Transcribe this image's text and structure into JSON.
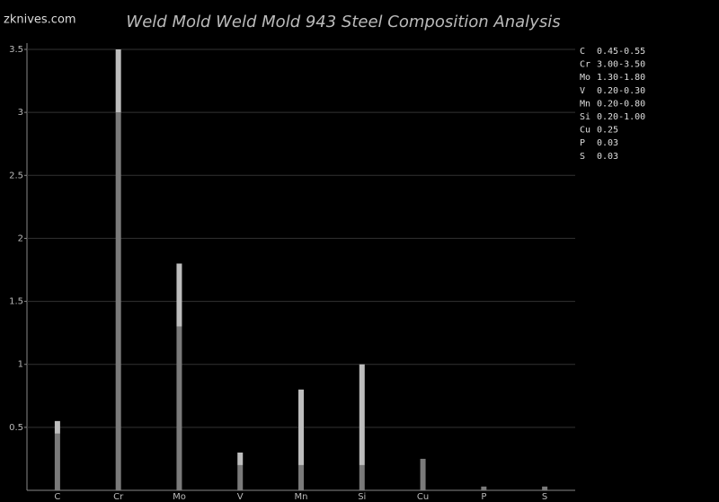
{
  "watermark": "zknives.com",
  "chart_data": {
    "type": "range_bar",
    "title": "Weld Mold Weld Mold 943 Steel Composition Analysis",
    "categories": [
      "C",
      "Cr",
      "Mo",
      "V",
      "Mn",
      "Si",
      "Cu",
      "P",
      "S"
    ],
    "low": [
      0.45,
      3.0,
      1.3,
      0.2,
      0.2,
      0.2,
      0.25,
      0.03,
      0.03
    ],
    "high": [
      0.55,
      3.5,
      1.8,
      0.3,
      0.8,
      1.0,
      null,
      null,
      null
    ],
    "spec_labels": [
      "0.45-0.55",
      "3.00-3.50",
      "1.30-1.80",
      "0.20-0.30",
      "0.20-0.80",
      "0.20-1.00",
      "0.25",
      "0.03",
      "0.03"
    ],
    "low_color": "#7a7a7a",
    "high_color": "#bdbdbd",
    "ylim": [
      0,
      3.5
    ],
    "yticks": [
      0.5,
      1,
      1.5,
      2,
      2.5,
      3,
      3.5
    ],
    "grid": true
  }
}
